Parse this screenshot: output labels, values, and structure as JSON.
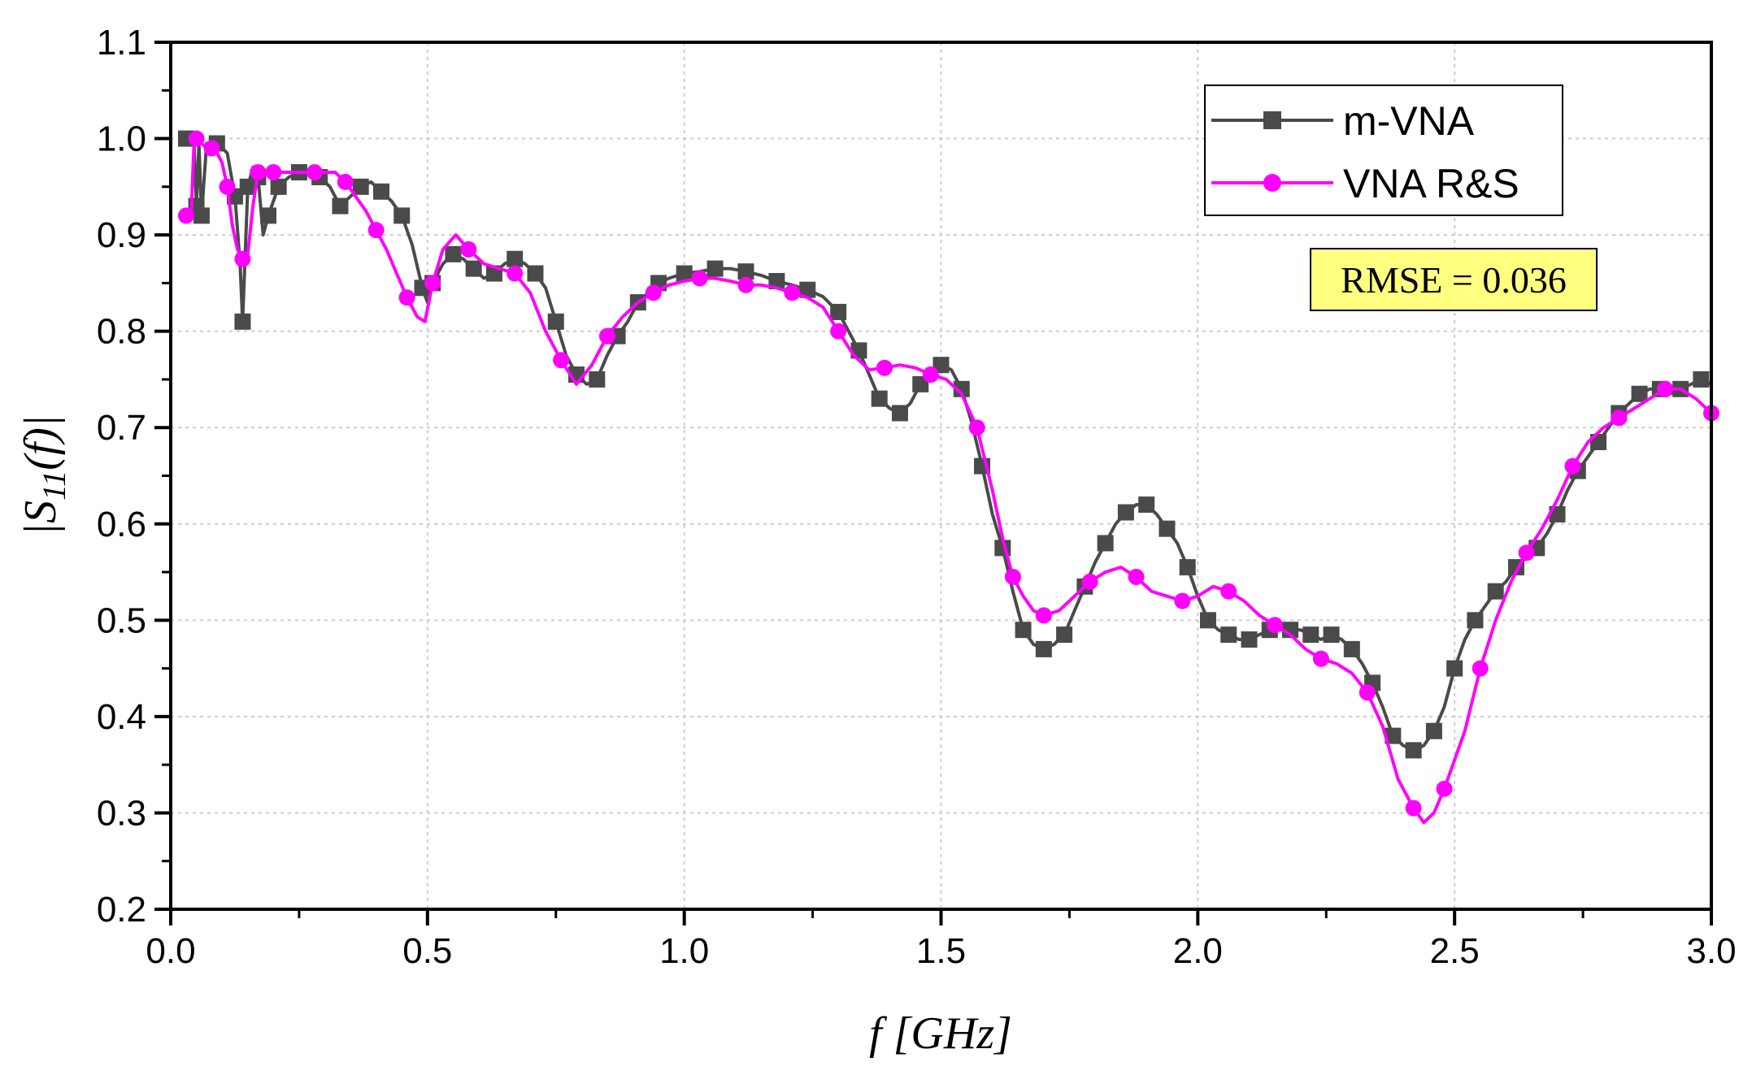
{
  "chart_data": {
    "type": "line",
    "title": "",
    "xlabel": "f [GHz]",
    "ylabel": "|S11(f)|",
    "ylabel_main": "|S",
    "ylabel_sub": "11",
    "ylabel_tail": "(f)|",
    "xlim": [
      0.0,
      3.0
    ],
    "ylim": [
      0.2,
      1.1
    ],
    "xticks": [
      0.0,
      0.5,
      1.0,
      1.5,
      2.0,
      2.5,
      3.0
    ],
    "xtick_labels": [
      "0.0",
      "0.5",
      "1.0",
      "1.5",
      "2.0",
      "2.5",
      "3.0"
    ],
    "yticks": [
      0.2,
      0.3,
      0.4,
      0.5,
      0.6,
      0.7,
      0.8,
      0.9,
      1.0,
      1.1
    ],
    "ytick_labels": [
      "0.2",
      "0.3",
      "0.4",
      "0.5",
      "0.6",
      "0.7",
      "0.8",
      "0.9",
      "1.0",
      "1.1"
    ],
    "grid": true,
    "legend_position": "top-right",
    "annotation": "RMSE = 0.036",
    "colors": {
      "series1": "#4a4a4a",
      "series2": "#ff00ff",
      "annotation_bg": "#ffff80",
      "grid": "#cccccc"
    },
    "series": [
      {
        "name": "m-VNA",
        "marker": "square",
        "x": [
          0.03,
          0.045,
          0.05,
          0.055,
          0.06,
          0.07,
          0.09,
          0.11,
          0.125,
          0.135,
          0.14,
          0.145,
          0.15,
          0.16,
          0.17,
          0.18,
          0.19,
          0.2,
          0.21,
          0.23,
          0.25,
          0.27,
          0.29,
          0.31,
          0.33,
          0.35,
          0.37,
          0.39,
          0.41,
          0.43,
          0.45,
          0.47,
          0.49,
          0.5,
          0.51,
          0.53,
          0.55,
          0.57,
          0.59,
          0.61,
          0.63,
          0.65,
          0.67,
          0.69,
          0.71,
          0.73,
          0.75,
          0.77,
          0.79,
          0.81,
          0.83,
          0.85,
          0.87,
          0.89,
          0.91,
          0.93,
          0.95,
          0.97,
          1.0,
          1.03,
          1.06,
          1.09,
          1.12,
          1.15,
          1.18,
          1.21,
          1.24,
          1.27,
          1.3,
          1.32,
          1.34,
          1.36,
          1.38,
          1.4,
          1.42,
          1.44,
          1.46,
          1.48,
          1.5,
          1.52,
          1.54,
          1.56,
          1.58,
          1.6,
          1.62,
          1.64,
          1.66,
          1.68,
          1.7,
          1.72,
          1.74,
          1.76,
          1.78,
          1.8,
          1.82,
          1.84,
          1.86,
          1.88,
          1.9,
          1.92,
          1.94,
          1.96,
          1.98,
          2.0,
          2.02,
          2.04,
          2.06,
          2.08,
          2.1,
          2.12,
          2.14,
          2.16,
          2.18,
          2.2,
          2.22,
          2.24,
          2.26,
          2.28,
          2.3,
          2.32,
          2.34,
          2.36,
          2.38,
          2.4,
          2.42,
          2.44,
          2.46,
          2.48,
          2.5,
          2.52,
          2.54,
          2.56,
          2.58,
          2.6,
          2.62,
          2.64,
          2.66,
          2.68,
          2.7,
          2.72,
          2.74,
          2.76,
          2.78,
          2.8,
          2.82,
          2.84,
          2.86,
          2.88,
          2.9,
          2.92,
          2.94,
          2.96,
          2.98,
          3.0
        ],
        "y": [
          1.0,
          1.0,
          0.93,
          0.995,
          0.92,
          0.995,
          0.995,
          0.985,
          0.94,
          0.87,
          0.81,
          0.88,
          0.95,
          0.97,
          0.96,
          0.9,
          0.92,
          0.935,
          0.95,
          0.96,
          0.965,
          0.965,
          0.96,
          0.95,
          0.93,
          0.94,
          0.95,
          0.955,
          0.945,
          0.935,
          0.92,
          0.89,
          0.845,
          0.83,
          0.85,
          0.87,
          0.88,
          0.875,
          0.865,
          0.855,
          0.86,
          0.87,
          0.875,
          0.87,
          0.86,
          0.845,
          0.81,
          0.775,
          0.755,
          0.745,
          0.75,
          0.775,
          0.795,
          0.81,
          0.83,
          0.84,
          0.85,
          0.855,
          0.86,
          0.862,
          0.865,
          0.865,
          0.862,
          0.858,
          0.852,
          0.848,
          0.843,
          0.836,
          0.82,
          0.8,
          0.78,
          0.755,
          0.73,
          0.72,
          0.715,
          0.725,
          0.745,
          0.76,
          0.765,
          0.76,
          0.74,
          0.705,
          0.66,
          0.61,
          0.575,
          0.53,
          0.49,
          0.475,
          0.47,
          0.475,
          0.485,
          0.51,
          0.535,
          0.56,
          0.58,
          0.6,
          0.612,
          0.62,
          0.62,
          0.61,
          0.595,
          0.58,
          0.555,
          0.525,
          0.5,
          0.49,
          0.485,
          0.48,
          0.48,
          0.485,
          0.49,
          0.49,
          0.49,
          0.49,
          0.485,
          0.48,
          0.485,
          0.48,
          0.47,
          0.455,
          0.435,
          0.41,
          0.38,
          0.37,
          0.365,
          0.37,
          0.385,
          0.41,
          0.45,
          0.48,
          0.5,
          0.515,
          0.53,
          0.54,
          0.555,
          0.565,
          0.575,
          0.59,
          0.61,
          0.635,
          0.655,
          0.67,
          0.685,
          0.7,
          0.715,
          0.725,
          0.735,
          0.74,
          0.74,
          0.735,
          0.74,
          0.745,
          0.75,
          0.745
        ]
      },
      {
        "name": "VNA R&S",
        "marker": "circle",
        "x": [
          0.03,
          0.04,
          0.045,
          0.05,
          0.06,
          0.07,
          0.08,
          0.09,
          0.1,
          0.11,
          0.12,
          0.13,
          0.14,
          0.15,
          0.16,
          0.17,
          0.18,
          0.19,
          0.2,
          0.22,
          0.25,
          0.28,
          0.3,
          0.32,
          0.34,
          0.36,
          0.38,
          0.4,
          0.42,
          0.44,
          0.46,
          0.48,
          0.495,
          0.51,
          0.53,
          0.555,
          0.58,
          0.61,
          0.64,
          0.67,
          0.7,
          0.73,
          0.76,
          0.79,
          0.82,
          0.85,
          0.88,
          0.91,
          0.94,
          0.97,
          1.0,
          1.03,
          1.06,
          1.09,
          1.12,
          1.15,
          1.18,
          1.21,
          1.24,
          1.27,
          1.3,
          1.33,
          1.36,
          1.39,
          1.42,
          1.45,
          1.48,
          1.51,
          1.54,
          1.57,
          1.6,
          1.62,
          1.64,
          1.66,
          1.68,
          1.7,
          1.73,
          1.76,
          1.79,
          1.82,
          1.85,
          1.88,
          1.91,
          1.94,
          1.97,
          2.0,
          2.03,
          2.06,
          2.09,
          2.12,
          2.15,
          2.18,
          2.21,
          2.24,
          2.27,
          2.3,
          2.33,
          2.36,
          2.39,
          2.42,
          2.44,
          2.46,
          2.48,
          2.5,
          2.52,
          2.55,
          2.58,
          2.61,
          2.64,
          2.67,
          2.7,
          2.73,
          2.76,
          2.79,
          2.82,
          2.85,
          2.88,
          2.91,
          2.94,
          2.97,
          3.0
        ],
        "y": [
          0.92,
          0.925,
          0.99,
          1.0,
          0.995,
          0.99,
          0.99,
          0.985,
          0.975,
          0.95,
          0.91,
          0.885,
          0.875,
          0.88,
          0.93,
          0.965,
          0.965,
          0.965,
          0.965,
          0.965,
          0.965,
          0.965,
          0.965,
          0.965,
          0.955,
          0.94,
          0.925,
          0.905,
          0.885,
          0.86,
          0.835,
          0.815,
          0.81,
          0.85,
          0.885,
          0.9,
          0.885,
          0.87,
          0.865,
          0.86,
          0.84,
          0.8,
          0.77,
          0.745,
          0.765,
          0.795,
          0.815,
          0.83,
          0.84,
          0.848,
          0.852,
          0.855,
          0.855,
          0.852,
          0.848,
          0.848,
          0.845,
          0.84,
          0.835,
          0.825,
          0.8,
          0.775,
          0.76,
          0.762,
          0.765,
          0.762,
          0.755,
          0.75,
          0.735,
          0.7,
          0.635,
          0.585,
          0.545,
          0.525,
          0.51,
          0.505,
          0.51,
          0.525,
          0.54,
          0.55,
          0.555,
          0.545,
          0.53,
          0.525,
          0.52,
          0.525,
          0.535,
          0.53,
          0.52,
          0.505,
          0.495,
          0.485,
          0.47,
          0.46,
          0.455,
          0.445,
          0.425,
          0.39,
          0.335,
          0.305,
          0.29,
          0.3,
          0.325,
          0.355,
          0.385,
          0.45,
          0.5,
          0.54,
          0.57,
          0.595,
          0.625,
          0.66,
          0.685,
          0.7,
          0.71,
          0.72,
          0.73,
          0.74,
          0.74,
          0.73,
          0.715
        ]
      }
    ]
  }
}
